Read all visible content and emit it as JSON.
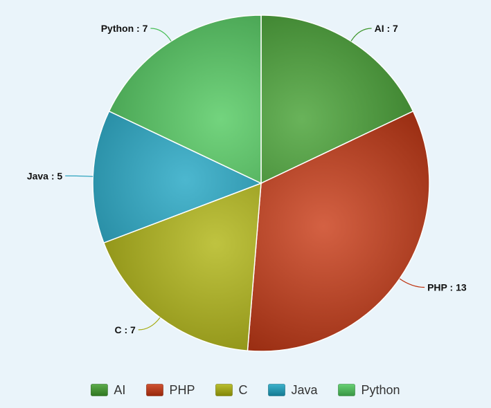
{
  "chart_data": {
    "type": "pie",
    "title": "",
    "categories": [
      "AI",
      "PHP",
      "C",
      "Java",
      "Python"
    ],
    "values": [
      7,
      13,
      7,
      5,
      7
    ],
    "labels": [
      "AI : 7",
      "PHP : 13",
      "C : 7",
      "Java : 5",
      "Python : 7"
    ],
    "colors": [
      "#3f9d2b",
      "#c8340e",
      "#adb20a",
      "#1aa3c2",
      "#4cc85a"
    ],
    "legend": {
      "position": "bottom",
      "entries": [
        "AI",
        "PHP",
        "C",
        "Java",
        "Python"
      ]
    },
    "start_angle_deg": 0,
    "direction": "clockwise"
  }
}
